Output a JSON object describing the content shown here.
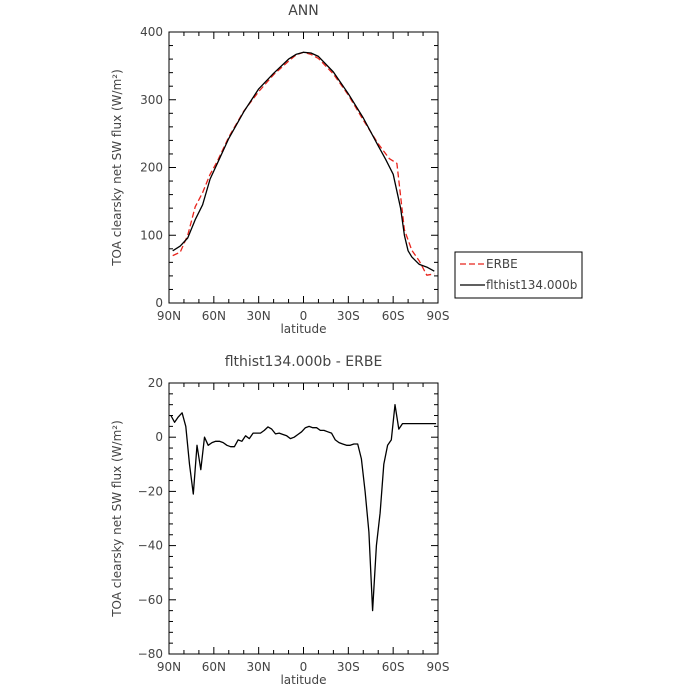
{
  "chart_data": [
    {
      "type": "line",
      "title": "ANN",
      "xlabel": "latitude",
      "ylabel": "TOA clearsky net SW flux (W/m²)",
      "xlim": [
        -90,
        90
      ],
      "ylim": [
        0,
        400
      ],
      "x_ticks": [
        -90,
        -60,
        -30,
        0,
        30,
        60,
        90
      ],
      "x_tick_labels": [
        "90N",
        "60N",
        "30N",
        "0",
        "30S",
        "60S",
        "90S"
      ],
      "y_ticks": [
        0,
        100,
        200,
        300,
        400
      ],
      "y_tick_labels": [
        "0",
        "100",
        "200",
        "300",
        "400"
      ],
      "grid": false,
      "legend": "right",
      "series": [
        {
          "name": "ERBE",
          "color": "#e8241c",
          "dash": "dashed",
          "x": [
            -87.5,
            -82.5,
            -77.5,
            -72.5,
            -67.5,
            -62.5,
            -57.5,
            -50,
            -40,
            -30,
            -20,
            -10,
            -5,
            0,
            5,
            10,
            20,
            30,
            40,
            50,
            57.5,
            62.5,
            67.5,
            72.5,
            77.5,
            82.5,
            87.5
          ],
          "y": [
            70,
            75,
            100,
            142,
            163,
            190,
            210,
            245,
            283,
            312,
            337,
            357,
            366,
            370,
            367,
            361,
            338,
            307,
            270,
            235,
            213,
            206,
            108,
            78,
            62,
            41,
            43
          ]
        },
        {
          "name": "flthist134.000b",
          "color": "#000000",
          "dash": "solid",
          "x": [
            -87.5,
            -82.5,
            -77.5,
            -72.5,
            -67.5,
            -62.5,
            -57.5,
            -50,
            -40,
            -30,
            -20,
            -10,
            -5,
            0,
            5,
            10,
            20,
            30,
            40,
            50,
            55,
            60,
            65,
            67.5,
            70,
            72.5,
            77.5,
            82.5,
            87.5
          ],
          "y": [
            77,
            84,
            96,
            123,
            145,
            183,
            207,
            243,
            282,
            316,
            339,
            360,
            367,
            370,
            369,
            364,
            341,
            309,
            273,
            232,
            212,
            190,
            140,
            100,
            77,
            68,
            57,
            53,
            47
          ]
        }
      ]
    },
    {
      "type": "line",
      "title": "flthist134.000b - ERBE",
      "xlabel": "latitude",
      "ylabel": "TOA clearsky net SW flux (W/m²)",
      "xlim": [
        -90,
        90
      ],
      "ylim": [
        -80,
        20
      ],
      "x_ticks": [
        -90,
        -60,
        -30,
        0,
        30,
        60,
        90
      ],
      "x_tick_labels": [
        "90N",
        "60N",
        "30N",
        "0",
        "30S",
        "60S",
        "90S"
      ],
      "y_ticks": [
        -80,
        -60,
        -40,
        -20,
        0,
        20
      ],
      "y_tick_labels": [
        "−80",
        "−60",
        "−40",
        "−20",
        "0",
        "20"
      ],
      "grid": false,
      "series": [
        {
          "color": "#000000",
          "x": [
            -88.75,
            -86.25,
            -83.75,
            -81.25,
            -78.75,
            -76.25,
            -73.75,
            -71.25,
            -68.75,
            -66.25,
            -63.75,
            -61.25,
            -58.75,
            -56.25,
            -53.75,
            -51.25,
            -48.75,
            -46.25,
            -43.75,
            -41.25,
            -38.75,
            -36.25,
            -33.75,
            -31.25,
            -28.75,
            -26.25,
            -23.75,
            -21.25,
            -18.75,
            -16.25,
            -13.75,
            -11.25,
            -8.75,
            -6.25,
            -3.75,
            -1.25,
            1.25,
            3.75,
            6.25,
            8.75,
            11.25,
            13.75,
            16.25,
            18.75,
            21.25,
            23.75,
            26.25,
            28.75,
            31.25,
            33.75,
            36.25,
            38.75,
            41.25,
            43.75,
            46.25,
            48.75,
            51.25,
            53.75,
            56.25,
            58.75,
            61.25,
            63.75,
            66.25,
            68.75,
            71.25,
            73.75,
            76.25,
            78.75,
            81.25,
            83.75,
            86.25,
            88.75
          ],
          "y": [
            8,
            5.5,
            7.5,
            9,
            4,
            -10,
            -21,
            -3,
            -12,
            0,
            -3,
            -2,
            -1.5,
            -1.5,
            -2,
            -3,
            -3.5,
            -3.5,
            -1,
            -1.5,
            0.5,
            -0.5,
            1.5,
            1.5,
            1.5,
            2.5,
            3.8,
            3,
            1.2,
            1.5,
            1,
            0.5,
            -0.5,
            0,
            1,
            2,
            3.5,
            4,
            3.5,
            3.5,
            2.5,
            2.5,
            2,
            1.5,
            -1,
            -2,
            -2.5,
            -3,
            -3,
            -2.5,
            -2.5,
            -8,
            -20,
            -35,
            -64,
            -40,
            -28,
            -10,
            -3,
            -1,
            12,
            3,
            5,
            5,
            5,
            5,
            5,
            5,
            5,
            5,
            5,
            5
          ]
        }
      ]
    }
  ]
}
